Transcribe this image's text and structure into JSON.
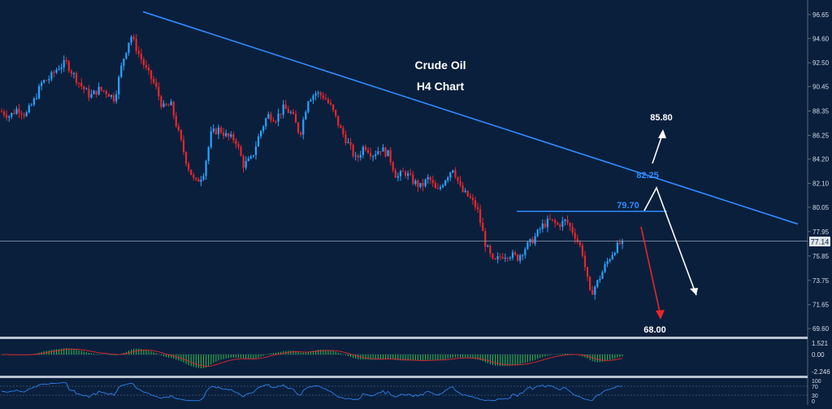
{
  "chart_data": {
    "type": "candlestick",
    "title": "Crude Oil",
    "subtitle": "H4 Chart",
    "colors": {
      "background": "#0a1f3c",
      "bull": "#29a3ff",
      "bear": "#e8262a",
      "trendline": "#2f8cff",
      "annotation_blue": "#2f8cff",
      "white": "#ffffff",
      "hist": "#2fb04a"
    },
    "ylim": [
      68.6,
      97.6
    ],
    "price_ticks": [
      "96.65",
      "94.60",
      "92.50",
      "90.45",
      "88.35",
      "86.25",
      "84.20",
      "82.10",
      "80.05",
      "77.95",
      "75.85",
      "73.75",
      "71.65",
      "69.60"
    ],
    "current_price": "77.14",
    "levels": {
      "resistance": "79.70",
      "trendline_touch": "82.25",
      "target_up": "85.80",
      "target_down": "68.00"
    },
    "trendline": {
      "from_price": 96.9,
      "to_price": 78.6
    },
    "path": [
      88.3,
      87.9,
      88.6,
      88.0,
      89.2,
      90.8,
      91.2,
      92.1,
      92.5,
      91.4,
      90.4,
      89.6,
      90.2,
      90.0,
      89.4,
      92.6,
      94.9,
      93.3,
      91.8,
      90.6,
      88.6,
      88.9,
      86.3,
      83.8,
      82.1,
      82.9,
      86.4,
      86.8,
      86.1,
      85.9,
      83.7,
      84.2,
      86.4,
      88.0,
      87.7,
      88.6,
      88.1,
      86.3,
      89.4,
      89.9,
      89.6,
      88.5,
      86.8,
      85.5,
      84.1,
      85.4,
      84.6,
      85.1,
      84.6,
      82.6,
      83.1,
      82.3,
      81.8,
      82.6,
      81.3,
      82.5,
      83.5,
      81.5,
      80.9,
      79.9,
      76.9,
      75.2,
      75.9,
      76.0,
      75.7,
      76.6,
      77.3,
      78.4,
      78.9,
      78.5,
      78.9,
      77.8,
      76.3,
      72.5,
      73.7,
      75.2,
      76.4,
      77.14
    ],
    "macd_indicator": {
      "ticks": [
        "1.521",
        "0.00",
        "-2.246"
      ]
    },
    "rsi_indicator": {
      "ticks": [
        "100",
        "70",
        "30",
        "0"
      ]
    }
  }
}
